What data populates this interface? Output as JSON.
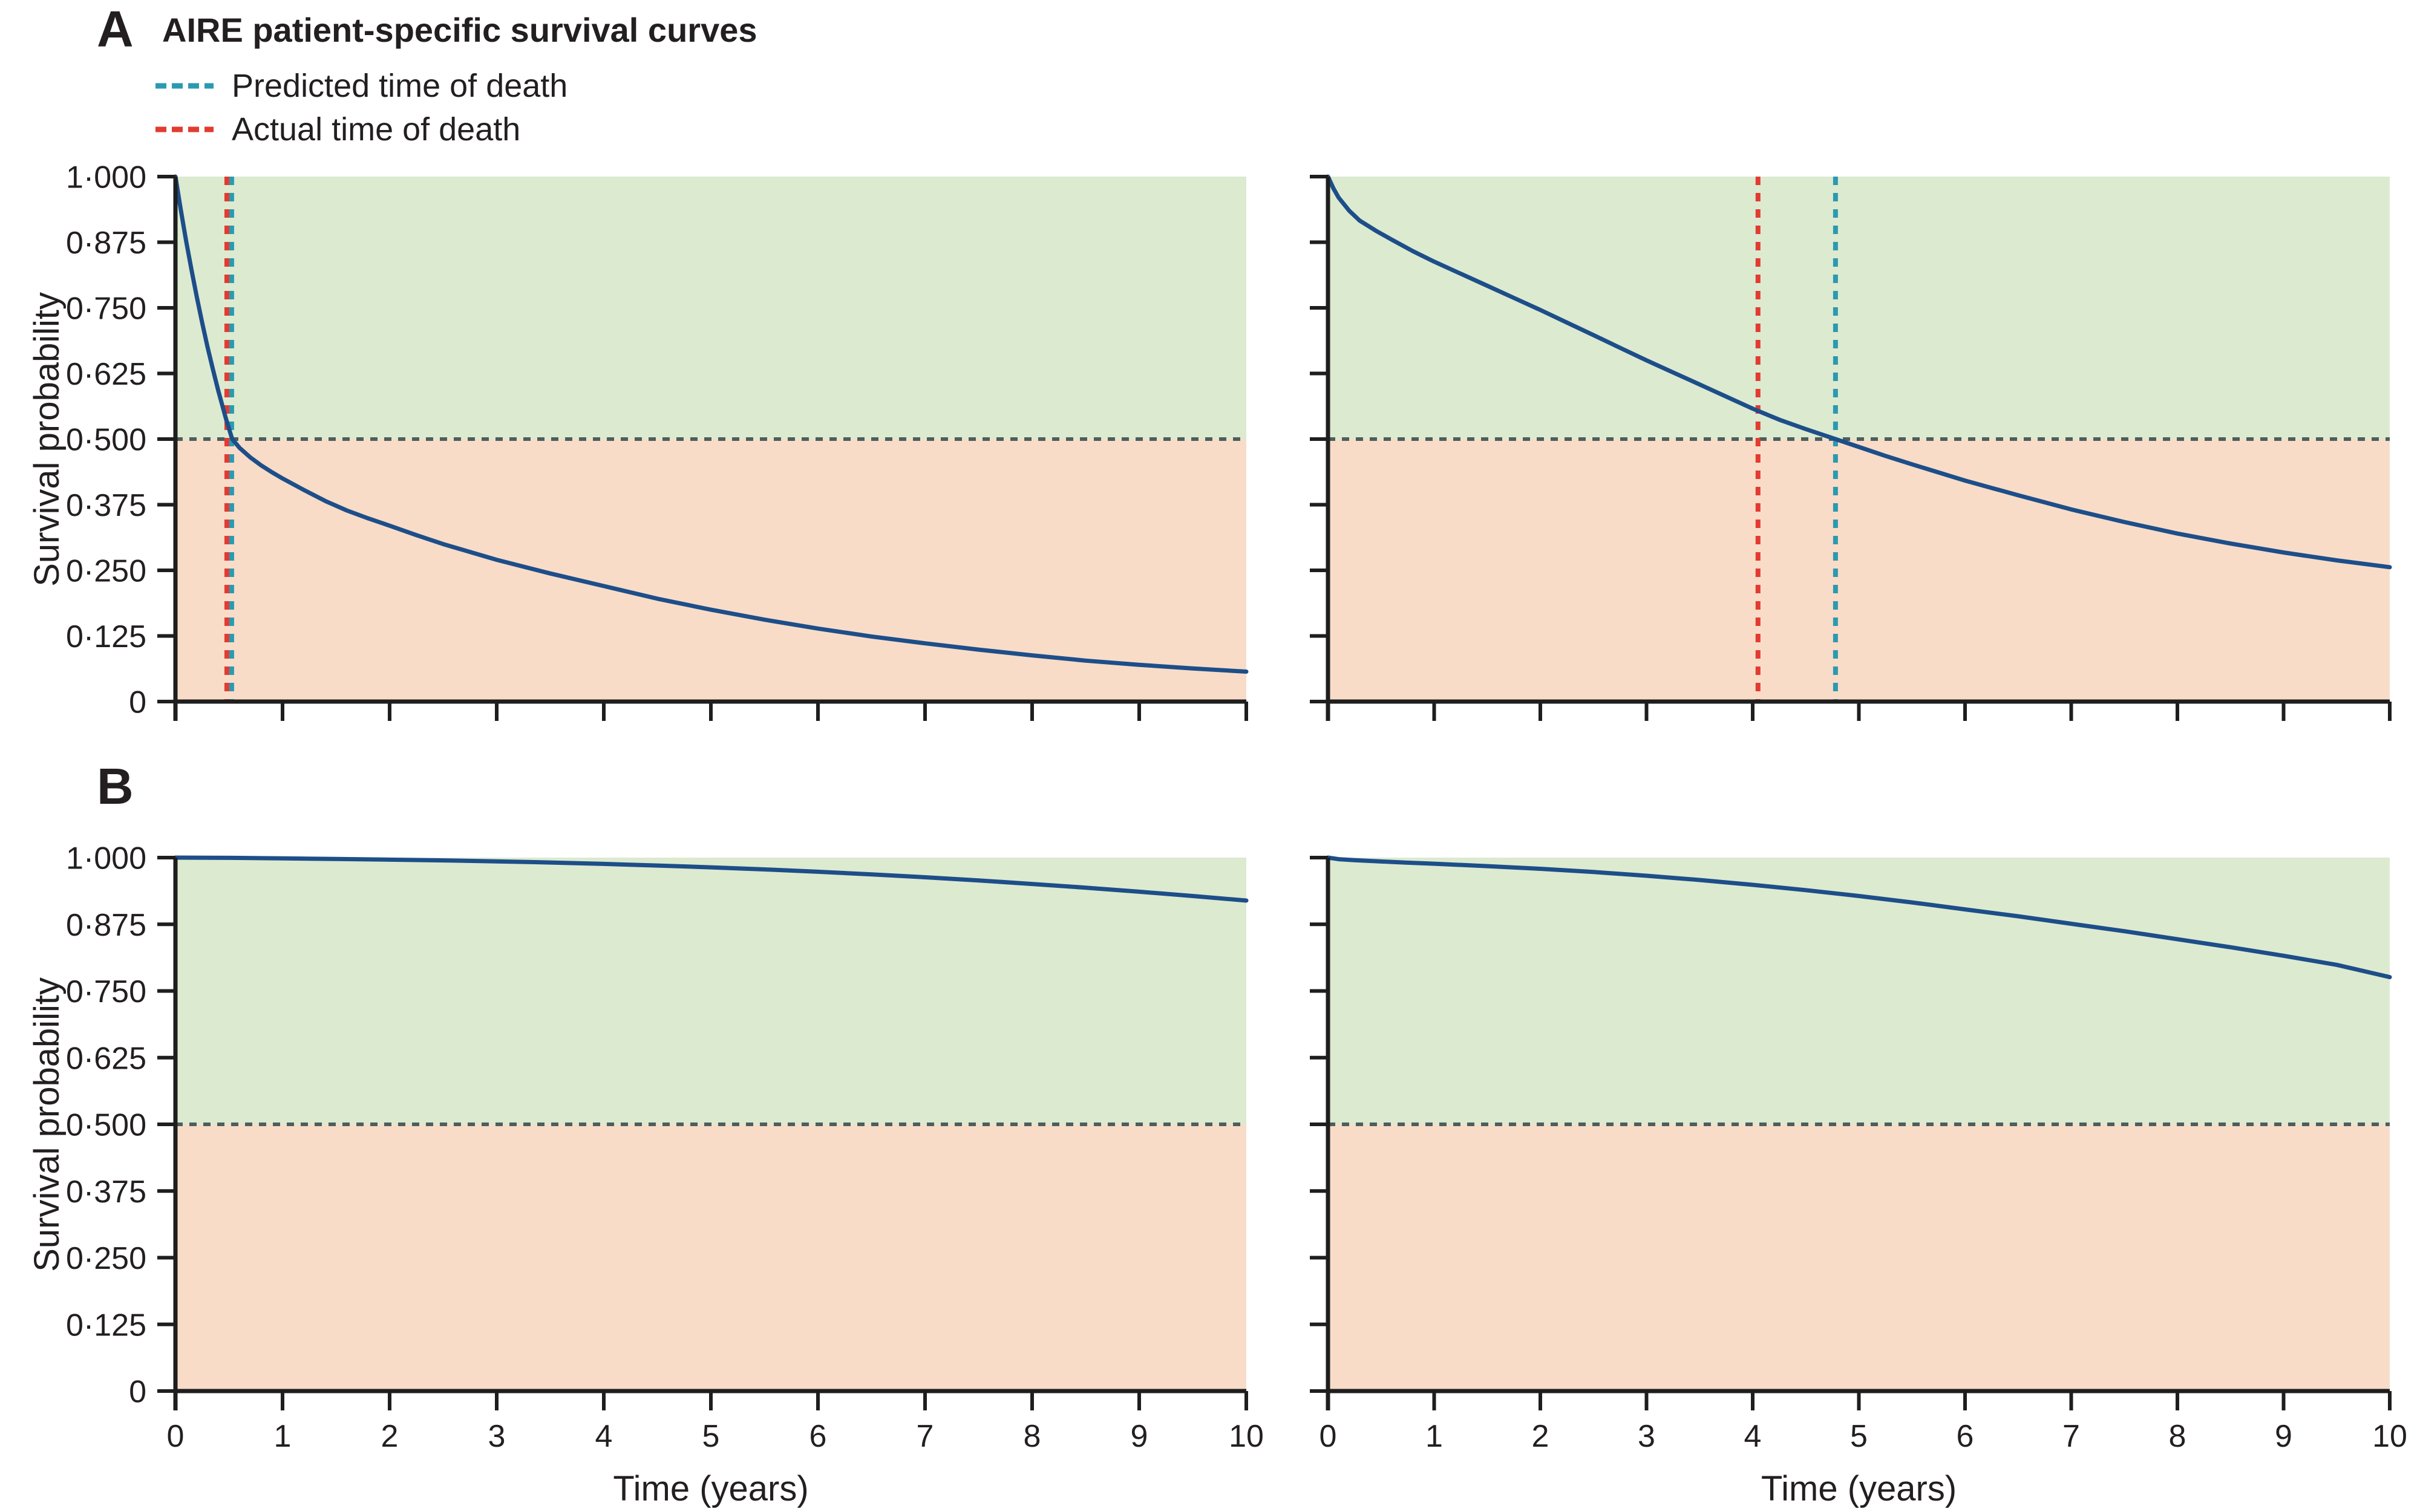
{
  "figure": {
    "panel_a_label": "A",
    "panel_b_label": "B",
    "title": "AIRE patient-specific survival curves",
    "y_axis_title": "Survival probability",
    "x_axis_title": "Time (years)",
    "legend": {
      "predicted_label": "Predicted time of death",
      "actual_label": "Actual time of death"
    }
  },
  "colors": {
    "curve": "#1d4e89",
    "predicted": "#2b9ab0",
    "actual": "#e23b31",
    "threshold": "#4c5e5d",
    "green_zone": "#dcead0",
    "orange_zone": "#f8dcc8",
    "axis": "#1e1e1e",
    "text": "#231f20"
  },
  "chart_data": [
    {
      "type": "line",
      "panel": "A",
      "position": "top-left",
      "xlim": [
        0,
        10
      ],
      "ylim": [
        0,
        1
      ],
      "x_ticks": [
        0,
        1,
        2,
        3,
        4,
        5,
        6,
        7,
        8,
        9,
        10
      ],
      "x_tick_labels": [
        "0",
        "1",
        "2",
        "3",
        "4",
        "5",
        "6",
        "7",
        "8",
        "9",
        "10"
      ],
      "y_ticks": [
        0,
        0.125,
        0.25,
        0.375,
        0.5,
        0.625,
        0.75,
        0.875,
        1.0
      ],
      "y_tick_labels": [
        "0",
        "0·125",
        "0·250",
        "0·375",
        "0·500",
        "0·625",
        "0·750",
        "0·875",
        "1·000"
      ],
      "show_y_tick_labels": true,
      "show_x_tick_labels": false,
      "threshold": 0.5,
      "actual_time_years": 0.48,
      "predicted_time_years": 0.525,
      "series": {
        "name": "survival-curve",
        "x": [
          0,
          0.05,
          0.1,
          0.15,
          0.2,
          0.25,
          0.3,
          0.35,
          0.4,
          0.47,
          0.53,
          0.6,
          0.7,
          0.8,
          0.9,
          1.0,
          1.2,
          1.4,
          1.6,
          1.8,
          2.0,
          2.25,
          2.5,
          2.75,
          3.0,
          3.5,
          4.0,
          4.5,
          5.0,
          5.5,
          6.0,
          6.5,
          7.0,
          7.5,
          8.0,
          8.5,
          9.0,
          9.5,
          10.0
        ],
        "y": [
          1.0,
          0.937,
          0.877,
          0.822,
          0.77,
          0.721,
          0.675,
          0.633,
          0.592,
          0.54,
          0.5,
          0.483,
          0.465,
          0.45,
          0.437,
          0.425,
          0.403,
          0.382,
          0.364,
          0.349,
          0.335,
          0.317,
          0.3,
          0.285,
          0.27,
          0.244,
          0.22,
          0.196,
          0.175,
          0.156,
          0.139,
          0.124,
          0.111,
          0.099,
          0.088,
          0.078,
          0.07,
          0.063,
          0.057
        ]
      }
    },
    {
      "type": "line",
      "panel": "A",
      "position": "top-right",
      "xlim": [
        0,
        10
      ],
      "ylim": [
        0,
        1
      ],
      "x_ticks": [
        0,
        1,
        2,
        3,
        4,
        5,
        6,
        7,
        8,
        9,
        10
      ],
      "x_tick_labels": [
        "0",
        "1",
        "2",
        "3",
        "4",
        "5",
        "6",
        "7",
        "8",
        "9",
        "10"
      ],
      "y_ticks": [
        0,
        0.125,
        0.25,
        0.375,
        0.5,
        0.625,
        0.75,
        0.875,
        1.0
      ],
      "y_tick_labels": [
        "0",
        "0·125",
        "0·250",
        "0·375",
        "0·500",
        "0·625",
        "0·750",
        "0·875",
        "1·000"
      ],
      "show_y_tick_labels": false,
      "show_x_tick_labels": false,
      "threshold": 0.5,
      "actual_time_years": 4.05,
      "predicted_time_years": 4.78,
      "series": {
        "name": "survival-curve",
        "x": [
          0,
          0.05,
          0.1,
          0.2,
          0.3,
          0.45,
          0.6,
          0.8,
          1.0,
          1.25,
          1.5,
          1.75,
          2.0,
          2.25,
          2.5,
          2.75,
          3.0,
          3.25,
          3.5,
          3.75,
          4.0,
          4.25,
          4.5,
          4.78,
          5.0,
          5.25,
          5.5,
          6.0,
          6.5,
          7.0,
          7.5,
          8.0,
          8.5,
          9.0,
          9.5,
          10.0
        ],
        "y": [
          1.0,
          0.978,
          0.96,
          0.935,
          0.916,
          0.897,
          0.88,
          0.858,
          0.838,
          0.815,
          0.792,
          0.769,
          0.746,
          0.722,
          0.698,
          0.674,
          0.65,
          0.627,
          0.604,
          0.581,
          0.558,
          0.537,
          0.519,
          0.5,
          0.485,
          0.468,
          0.452,
          0.421,
          0.393,
          0.366,
          0.342,
          0.32,
          0.301,
          0.284,
          0.269,
          0.256
        ]
      }
    },
    {
      "type": "line",
      "panel": "B",
      "position": "bottom-left",
      "xlim": [
        0,
        10
      ],
      "ylim": [
        0,
        1
      ],
      "x_ticks": [
        0,
        1,
        2,
        3,
        4,
        5,
        6,
        7,
        8,
        9,
        10
      ],
      "x_tick_labels": [
        "0",
        "1",
        "2",
        "3",
        "4",
        "5",
        "6",
        "7",
        "8",
        "9",
        "10"
      ],
      "y_ticks": [
        0,
        0.125,
        0.25,
        0.375,
        0.5,
        0.625,
        0.75,
        0.875,
        1.0
      ],
      "y_tick_labels": [
        "0",
        "0·125",
        "0·250",
        "0·375",
        "0·500",
        "0·625",
        "0·750",
        "0·875",
        "1·000"
      ],
      "show_y_tick_labels": true,
      "show_x_tick_labels": true,
      "threshold": 0.5,
      "actual_time_years": null,
      "predicted_time_years": null,
      "series": {
        "name": "survival-curve",
        "x": [
          0,
          0.5,
          1,
          1.5,
          2,
          2.5,
          3,
          3.5,
          4,
          4.5,
          5,
          5.5,
          6,
          6.5,
          7,
          7.5,
          8,
          8.5,
          9,
          9.5,
          10
        ],
        "y": [
          1.0,
          0.9995,
          0.9985,
          0.9975,
          0.9962,
          0.9948,
          0.993,
          0.9908,
          0.9882,
          0.9852,
          0.9818,
          0.9779,
          0.9735,
          0.9686,
          0.9632,
          0.9572,
          0.9506,
          0.9436,
          0.936,
          0.928,
          0.9195
        ]
      }
    },
    {
      "type": "line",
      "panel": "B",
      "position": "bottom-right",
      "xlim": [
        0,
        10
      ],
      "ylim": [
        0,
        1
      ],
      "x_ticks": [
        0,
        1,
        2,
        3,
        4,
        5,
        6,
        7,
        8,
        9,
        10
      ],
      "x_tick_labels": [
        "0",
        "1",
        "2",
        "3",
        "4",
        "5",
        "6",
        "7",
        "8",
        "9",
        "10"
      ],
      "y_ticks": [
        0,
        0.125,
        0.25,
        0.375,
        0.5,
        0.625,
        0.75,
        0.875,
        1.0
      ],
      "y_tick_labels": [
        "0",
        "0·125",
        "0·250",
        "0·375",
        "0·500",
        "0·625",
        "0·750",
        "0·875",
        "1·000"
      ],
      "show_y_tick_labels": false,
      "show_x_tick_labels": true,
      "threshold": 0.5,
      "actual_time_years": null,
      "predicted_time_years": null,
      "series": {
        "name": "survival-curve",
        "x": [
          0,
          0.1,
          0.25,
          0.5,
          0.75,
          1,
          1.5,
          2,
          2.5,
          3,
          3.5,
          4,
          4.5,
          5,
          5.5,
          6,
          6.5,
          7,
          7.5,
          8,
          8.5,
          9,
          9.5,
          10
        ],
        "y": [
          1.0,
          0.997,
          0.9952,
          0.9927,
          0.9905,
          0.9885,
          0.984,
          0.979,
          0.973,
          0.966,
          0.958,
          0.949,
          0.939,
          0.928,
          0.916,
          0.903,
          0.89,
          0.876,
          0.862,
          0.847,
          0.832,
          0.816,
          0.799,
          0.776
        ]
      }
    }
  ]
}
